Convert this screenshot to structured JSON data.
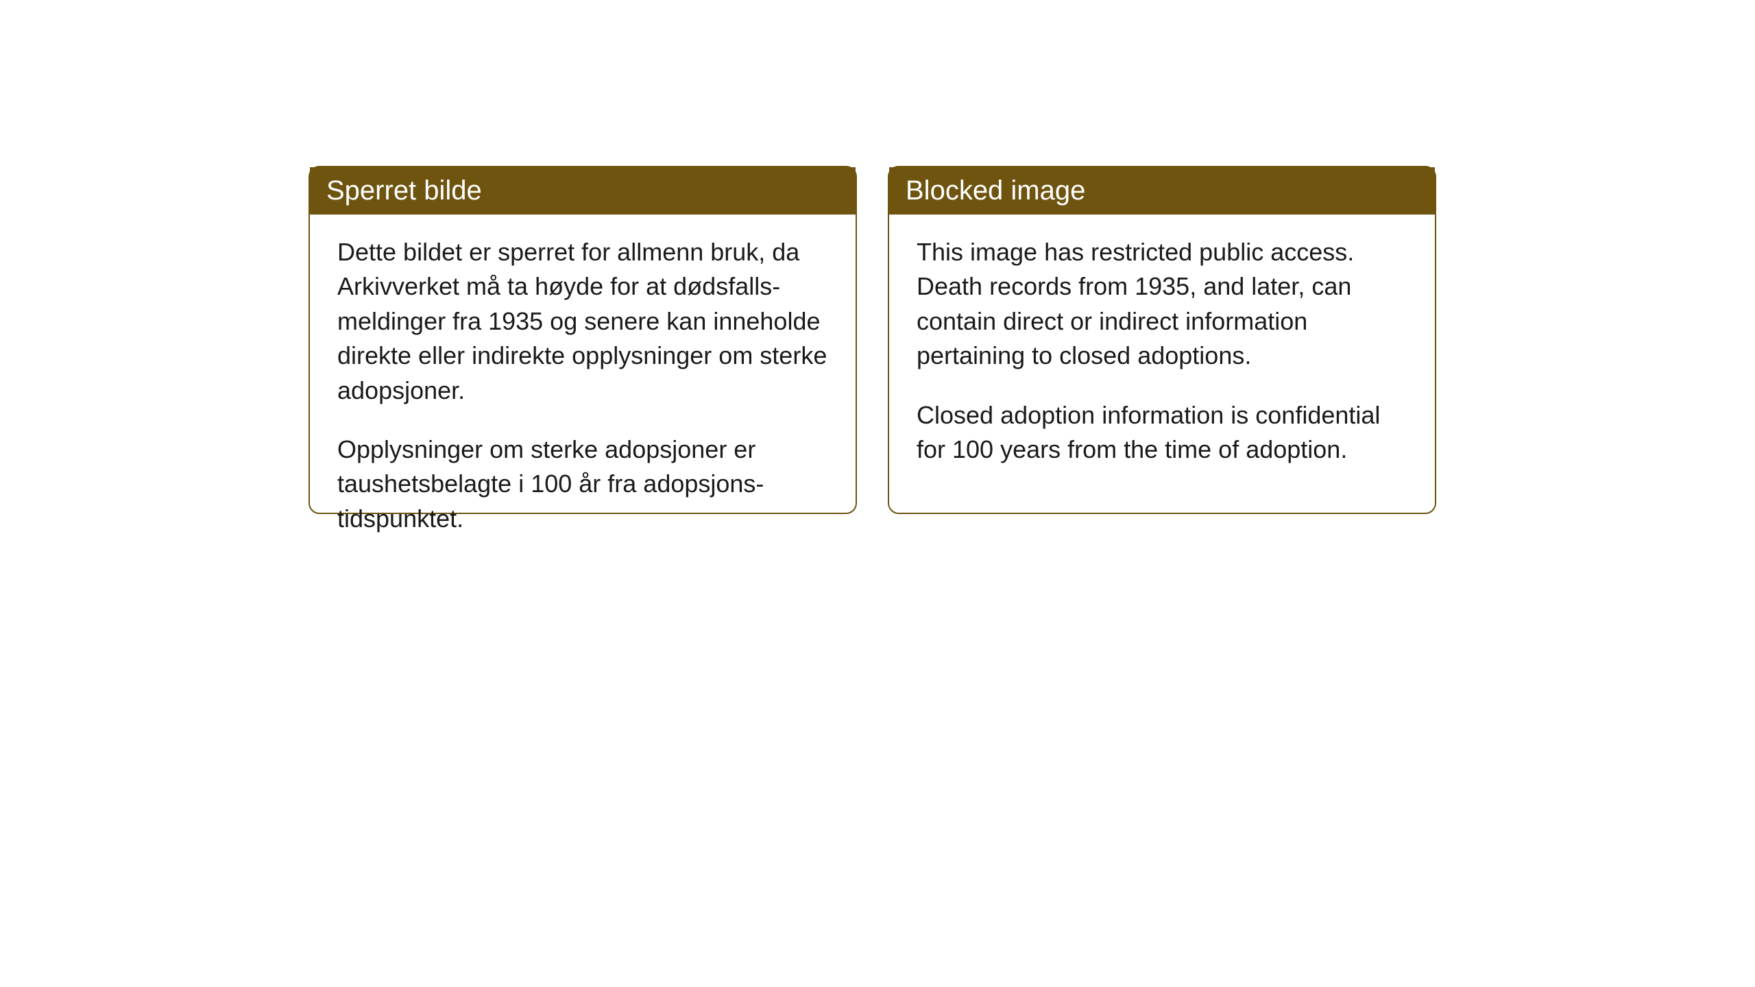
{
  "layout": {
    "background_color": "#ffffff",
    "card_border_color": "#6e540f",
    "card_header_bg": "#6e540f",
    "card_header_text_color": "#ffffff",
    "card_body_text_color": "#1a1a1a",
    "card_border_radius": 16,
    "card_border_width": 2,
    "header_fontsize": 40,
    "body_fontsize": 36,
    "gap": 45
  },
  "cards": [
    {
      "title": "Sperret bilde",
      "paragraph1": "Dette bildet er sperret for allmenn bruk, da Arkivverket må ta høyde for at dødsfalls-meldinger fra 1935 og senere kan inneholde direkte eller indirekte opplysninger om sterke adopsjoner.",
      "paragraph2": "Opplysninger om sterke adopsjoner er taushetsbelagte i 100 år fra adopsjons-tidspunktet."
    },
    {
      "title": "Blocked image",
      "paragraph1": "This image has restricted public access. Death records from 1935, and later, can contain direct or indirect information pertaining to closed adoptions.",
      "paragraph2": "Closed adoption information is confidential for 100 years from the time of adoption."
    }
  ]
}
